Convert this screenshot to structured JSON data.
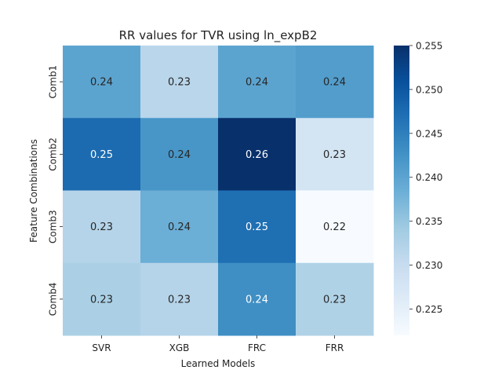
{
  "chart_data": {
    "type": "heatmap",
    "title": "RR values for TVR using ln_expB2",
    "xlabel": "Learned Models",
    "ylabel": "Feature Combinations",
    "x_categories": [
      "SVR",
      "XGB",
      "FRC",
      "FRR"
    ],
    "y_categories": [
      "Comb1",
      "Comb2",
      "Comb3",
      "Comb4"
    ],
    "values": [
      [
        0.24,
        0.2315,
        0.24,
        0.241
      ],
      [
        0.2475,
        0.242,
        0.255,
        0.228
      ],
      [
        0.232,
        0.2385,
        0.247,
        0.222
      ],
      [
        0.233,
        0.232,
        0.243,
        0.2325
      ]
    ],
    "cell_labels": [
      [
        "0.24",
        "0.23",
        "0.24",
        "0.24"
      ],
      [
        "0.25",
        "0.24",
        "0.26",
        "0.23"
      ],
      [
        "0.23",
        "0.24",
        "0.25",
        "0.22"
      ],
      [
        "0.23",
        "0.23",
        "0.24",
        "0.23"
      ]
    ],
    "colormap": "Blues",
    "color_range": [
      0.222,
      0.255
    ],
    "colorbar_ticks": [
      "0.225",
      "0.230",
      "0.235",
      "0.240",
      "0.245",
      "0.250",
      "0.255"
    ],
    "colorbar_tick_values": [
      0.225,
      0.23,
      0.235,
      0.24,
      0.245,
      0.25,
      0.255
    ],
    "grid": false,
    "legend": "colorbar-right"
  }
}
